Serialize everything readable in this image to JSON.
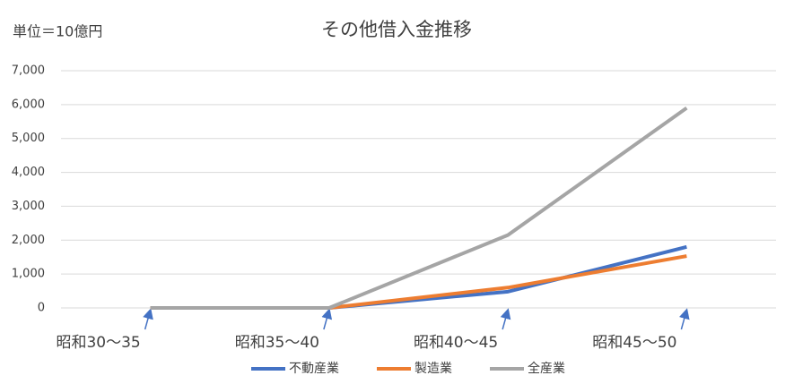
{
  "chart_data": {
    "type": "line",
    "title": "その他借入金推移",
    "unit_note": "単位＝10億円",
    "categories": [
      "昭和30〜35",
      "昭和35〜40",
      "昭和40〜45",
      "昭和45〜50"
    ],
    "series": [
      {
        "name": "不動産業",
        "color": "#4472c4",
        "values": [
          0,
          0,
          480,
          1800
        ]
      },
      {
        "name": "製造業",
        "color": "#ed7d31",
        "values": [
          0,
          0,
          600,
          1530
        ]
      },
      {
        "name": "全産業",
        "color": "#a5a5a5",
        "values": [
          0,
          0,
          2150,
          5900
        ]
      }
    ],
    "ylim": [
      0,
      7000
    ],
    "yticks": [
      0,
      {
        "value": 1000,
        "label": "1,000"
      },
      {
        "value": 2000,
        "label": "2,000"
      },
      {
        "value": 3000,
        "label": "3,000"
      },
      {
        "value": 4000,
        "label": "4,000"
      },
      {
        "value": 5000,
        "label": "5,000"
      },
      {
        "value": 6000,
        "label": "6,000"
      },
      {
        "value": 7000,
        "label": "7,000"
      }
    ],
    "grid": true,
    "legend": "bottom"
  }
}
